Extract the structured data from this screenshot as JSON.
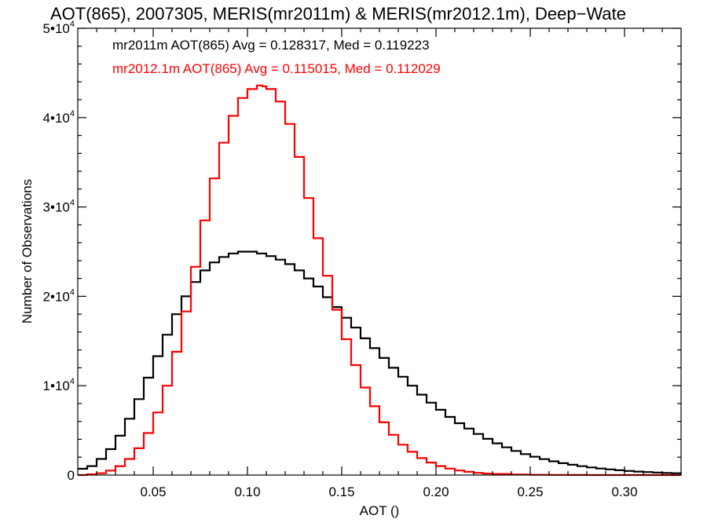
{
  "chart_data": {
    "type": "line",
    "title": "AOT(865), 2007305, MERIS(mr2011m) & MERIS(mr2012.1m), Deep−Wate",
    "xlabel": "AOT ()",
    "ylabel": "Number of Observations",
    "xlim": [
      0.01,
      0.33
    ],
    "ylim": [
      0,
      50000
    ],
    "x_ticks": [
      0.05,
      0.1,
      0.15,
      0.2,
      0.25,
      0.3
    ],
    "x_tick_labels": [
      "0.05",
      "0.10",
      "0.15",
      "0.20",
      "0.25",
      "0.30"
    ],
    "y_ticks": [
      0,
      10000,
      20000,
      30000,
      40000,
      50000
    ],
    "y_tick_labels": [
      {
        "base": "0",
        "exp": ""
      },
      {
        "base": "1•10",
        "exp": "4"
      },
      {
        "base": "2•10",
        "exp": "4"
      },
      {
        "base": "3•10",
        "exp": "4"
      },
      {
        "base": "4•10",
        "exp": "4"
      },
      {
        "base": "5•10",
        "exp": "4"
      }
    ],
    "grid": false,
    "series": [
      {
        "color": "#000000",
        "annotation": "mr2011m AOT(865) Avg = 0.128317, Med = 0.119223",
        "x": [
          0.01,
          0.015,
          0.02,
          0.025,
          0.03,
          0.035,
          0.04,
          0.045,
          0.05,
          0.055,
          0.06,
          0.065,
          0.07,
          0.075,
          0.08,
          0.085,
          0.09,
          0.095,
          0.1,
          0.105,
          0.11,
          0.115,
          0.12,
          0.125,
          0.13,
          0.135,
          0.14,
          0.145,
          0.15,
          0.155,
          0.16,
          0.165,
          0.17,
          0.175,
          0.18,
          0.185,
          0.19,
          0.195,
          0.2,
          0.205,
          0.21,
          0.215,
          0.22,
          0.225,
          0.23,
          0.235,
          0.24,
          0.245,
          0.25,
          0.255,
          0.26,
          0.265,
          0.27,
          0.275,
          0.28,
          0.285,
          0.29,
          0.295,
          0.3,
          0.305,
          0.31,
          0.315,
          0.32,
          0.325,
          0.33
        ],
        "values": [
          700,
          1000,
          1800,
          2900,
          4400,
          6300,
          8500,
          10900,
          13300,
          15700,
          18000,
          20000,
          21600,
          22900,
          23800,
          24400,
          24800,
          25000,
          25000,
          24800,
          24500,
          24100,
          23600,
          22900,
          22000,
          21100,
          19900,
          18800,
          17600,
          16500,
          15300,
          14200,
          13100,
          12000,
          11000,
          10000,
          9000,
          8100,
          7300,
          6500,
          5800,
          5200,
          4600,
          4050,
          3550,
          3100,
          2700,
          2350,
          2050,
          1780,
          1540,
          1330,
          1150,
          990,
          850,
          730,
          630,
          540,
          460,
          390,
          330,
          280,
          240,
          200,
          170
        ]
      },
      {
        "color": "#ff0000",
        "annotation": "mr2012.1m AOT(865) Avg = 0.115015, Med = 0.112029",
        "x": [
          0.01,
          0.015,
          0.02,
          0.025,
          0.03,
          0.035,
          0.04,
          0.045,
          0.05,
          0.055,
          0.06,
          0.065,
          0.07,
          0.075,
          0.08,
          0.085,
          0.09,
          0.095,
          0.1,
          0.105,
          0.108,
          0.11,
          0.115,
          0.12,
          0.125,
          0.13,
          0.135,
          0.14,
          0.145,
          0.15,
          0.155,
          0.16,
          0.165,
          0.17,
          0.175,
          0.18,
          0.185,
          0.19,
          0.195,
          0.2,
          0.205,
          0.21,
          0.215,
          0.22,
          0.225,
          0.23,
          0.24,
          0.25,
          0.26,
          0.27,
          0.28,
          0.29,
          0.3,
          0.31,
          0.32,
          0.33
        ],
        "values": [
          0,
          80,
          200,
          500,
          1000,
          1800,
          3000,
          4700,
          7000,
          10000,
          13800,
          18300,
          23300,
          28500,
          33200,
          37200,
          40200,
          42200,
          43200,
          43600,
          43500,
          43200,
          41800,
          39300,
          35600,
          31000,
          26500,
          22300,
          18500,
          15200,
          12300,
          9800,
          7700,
          5900,
          4500,
          3400,
          2600,
          1900,
          1400,
          1000,
          720,
          510,
          360,
          250,
          170,
          120,
          60,
          30,
          15,
          8,
          4,
          2,
          1,
          0,
          0,
          0
        ]
      }
    ]
  }
}
